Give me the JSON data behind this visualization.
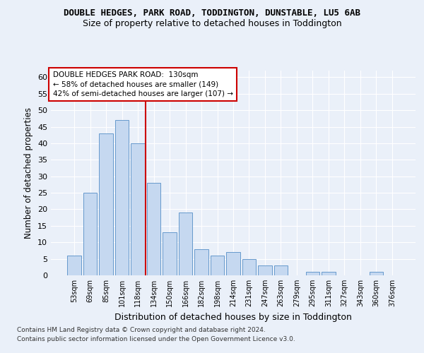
{
  "title": "DOUBLE HEDGES, PARK ROAD, TODDINGTON, DUNSTABLE, LU5 6AB",
  "subtitle": "Size of property relative to detached houses in Toddington",
  "xlabel": "Distribution of detached houses by size in Toddington",
  "ylabel": "Number of detached properties",
  "categories": [
    "53sqm",
    "69sqm",
    "85sqm",
    "101sqm",
    "118sqm",
    "134sqm",
    "150sqm",
    "166sqm",
    "182sqm",
    "198sqm",
    "214sqm",
    "231sqm",
    "247sqm",
    "263sqm",
    "279sqm",
    "295sqm",
    "311sqm",
    "327sqm",
    "343sqm",
    "360sqm",
    "376sqm"
  ],
  "values": [
    6,
    25,
    43,
    47,
    40,
    28,
    13,
    19,
    8,
    6,
    7,
    5,
    3,
    3,
    0,
    1,
    1,
    0,
    0,
    1,
    0
  ],
  "bar_color": "#c5d8f0",
  "bar_edge_color": "#6699cc",
  "background_color": "#eaf0f9",
  "grid_color": "#ffffff",
  "vline_x_index": 4.5,
  "vline_color": "#cc0000",
  "annotation_text": "DOUBLE HEDGES PARK ROAD:  130sqm\n← 58% of detached houses are smaller (149)\n42% of semi-detached houses are larger (107) →",
  "annotation_box_color": "#ffffff",
  "annotation_box_edge": "#cc0000",
  "ylim": [
    0,
    62
  ],
  "yticks": [
    0,
    5,
    10,
    15,
    20,
    25,
    30,
    35,
    40,
    45,
    50,
    55,
    60
  ],
  "footer1": "Contains HM Land Registry data © Crown copyright and database right 2024.",
  "footer2": "Contains public sector information licensed under the Open Government Licence v3.0."
}
